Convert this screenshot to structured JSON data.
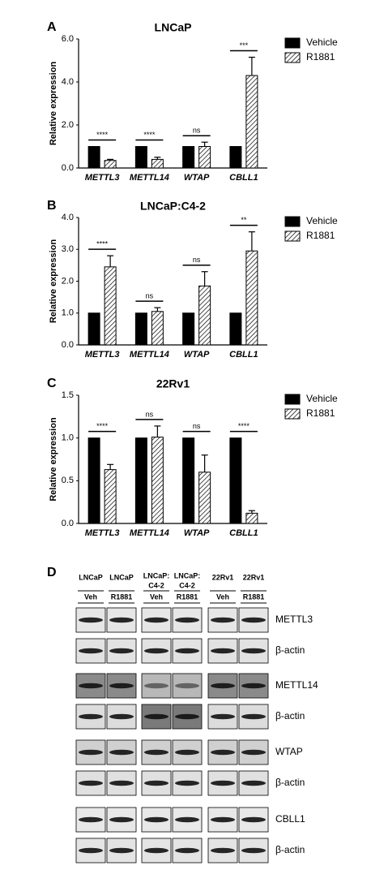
{
  "chart_data": [
    {
      "type": "bar",
      "panel_label": "A",
      "title": "LNCaP",
      "ylabel": "Relative expression",
      "categories": [
        "METTL3",
        "METTL14",
        "WTAP",
        "CBLL1"
      ],
      "series": [
        {
          "name": "Vehicle",
          "color": "#000000",
          "hatch": false,
          "values": [
            1,
            1,
            1,
            1
          ]
        },
        {
          "name": "R1881",
          "color": "#000000",
          "hatch": true,
          "values": [
            0.35,
            0.4,
            1.0,
            4.3
          ],
          "errors": [
            0.05,
            0.1,
            0.2,
            0.85
          ]
        }
      ],
      "annotations": [
        "****",
        "****",
        "ns",
        "***"
      ],
      "ylim": [
        0,
        6
      ],
      "yticks": [
        {
          "value": 0,
          "label": "0.0"
        },
        {
          "value": 2,
          "label": "2.0"
        },
        {
          "value": 4,
          "label": "4.0"
        },
        {
          "value": 6,
          "label": "6.0"
        }
      ],
      "legend": "right"
    },
    {
      "type": "bar",
      "panel_label": "B",
      "title": "LNCaP:C4-2",
      "ylabel": "Relative expression",
      "categories": [
        "METTL3",
        "METTL14",
        "WTAP",
        "CBLL1"
      ],
      "series": [
        {
          "name": "Vehicle",
          "color": "#000000",
          "hatch": false,
          "values": [
            1,
            1,
            1,
            1
          ]
        },
        {
          "name": "R1881",
          "color": "#000000",
          "hatch": true,
          "values": [
            2.45,
            1.05,
            1.85,
            2.95
          ],
          "errors": [
            0.35,
            0.12,
            0.45,
            0.6
          ]
        }
      ],
      "annotations": [
        "****",
        "ns",
        "ns",
        "**"
      ],
      "ylim": [
        0,
        4
      ],
      "yticks": [
        {
          "value": 0,
          "label": "0.0"
        },
        {
          "value": 1,
          "label": "1.0"
        },
        {
          "value": 2,
          "label": "2.0"
        },
        {
          "value": 3,
          "label": "3.0"
        },
        {
          "value": 4,
          "label": "4.0"
        }
      ],
      "legend": "right"
    },
    {
      "type": "bar",
      "panel_label": "C",
      "title": "22Rv1",
      "ylabel": "Relative expression",
      "categories": [
        "METTL3",
        "METTL14",
        "WTAP",
        "CBLL1"
      ],
      "series": [
        {
          "name": "Vehicle",
          "color": "#000000",
          "hatch": false,
          "values": [
            1,
            1,
            1,
            1
          ]
        },
        {
          "name": "R1881",
          "color": "#000000",
          "hatch": true,
          "values": [
            0.63,
            1.01,
            0.6,
            0.12
          ],
          "errors": [
            0.06,
            0.13,
            0.2,
            0.03
          ]
        }
      ],
      "annotations": [
        "****",
        "ns",
        "ns",
        "****"
      ],
      "ylim": [
        0,
        1.5
      ],
      "yticks": [
        {
          "value": 0,
          "label": "0.0"
        },
        0.5,
        {
          "value": 1,
          "label": "1.0"
        },
        1.5
      ],
      "legend": "right"
    }
  ],
  "blot": {
    "panel_label": "D",
    "columns": [
      {
        "lines": [
          "LNCaP"
        ],
        "treatment": "Veh"
      },
      {
        "lines": [
          "LNCaP"
        ],
        "treatment": "R1881"
      },
      {
        "lines": [
          "LNCaP:",
          "C4-2"
        ],
        "treatment": "Veh"
      },
      {
        "lines": [
          "LNCaP:",
          "C4-2"
        ],
        "treatment": "R1881"
      },
      {
        "lines": [
          "22Rv1"
        ],
        "treatment": "Veh"
      },
      {
        "lines": [
          "22Rv1"
        ],
        "treatment": "R1881"
      }
    ],
    "rows": [
      "METTL3",
      "β-actin",
      "METTL14",
      "β-actin",
      "WTAP",
      "β-actin",
      "CBLL1",
      "β-actin"
    ]
  }
}
